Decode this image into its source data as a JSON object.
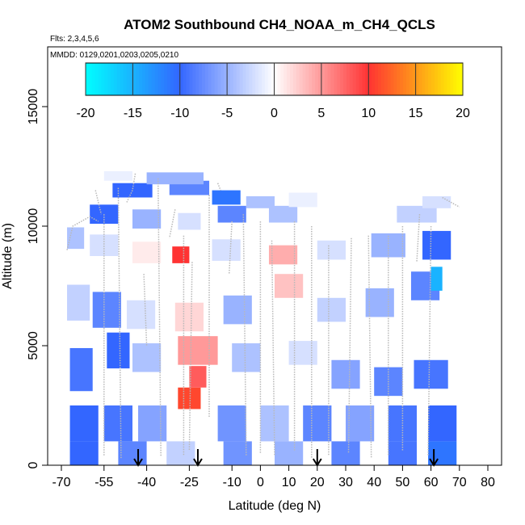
{
  "chart_data": {
    "type": "heatmap",
    "title": "ATOM2 Southbound CH4_NOAA_m_CH4_QCLS",
    "flights_text": "Flts: 2,3,4,5,6",
    "dates_text": "MMDD: 0129,0201,0203,0205,0210",
    "xlabel": "Latitude (deg N)",
    "ylabel": "Altitude (m)",
    "xlim": [
      -70,
      80
    ],
    "ylim": [
      0,
      17500
    ],
    "x_ticks": [
      -70,
      -55,
      -40,
      -25,
      -10,
      0,
      10,
      20,
      30,
      40,
      50,
      60,
      70,
      80
    ],
    "x_tick_labels": [
      "-70",
      "-55",
      "-40",
      "-25",
      "-10",
      "0",
      "10",
      "20",
      "30",
      "40",
      "50",
      "60",
      "70",
      "80"
    ],
    "y_ticks": [
      0,
      5000,
      10000,
      15000
    ],
    "y_tick_labels": [
      "0",
      "5000",
      "10000",
      "15000"
    ],
    "colorbar": {
      "min": -20,
      "max": 20,
      "ticks": [
        -20,
        -15,
        -10,
        -5,
        0,
        5,
        10,
        15,
        20
      ],
      "tick_labels": [
        "-20",
        "-15",
        "-10",
        "-5",
        "0",
        "5",
        "10",
        "15",
        "20"
      ],
      "colors": [
        "#00ffff",
        "#3366ff",
        "#ffffff",
        "#ff3333",
        "#ffff00"
      ]
    },
    "arrows_latitude": [
      -43,
      -22,
      20,
      61
    ],
    "cells": [
      {
        "lat": -62,
        "w": 10,
        "alt": 1750,
        "h": 1500,
        "v": -10
      },
      {
        "lat": -50,
        "w": 10,
        "alt": 1750,
        "h": 1500,
        "v": -9
      },
      {
        "lat": -38,
        "w": 10,
        "alt": 1750,
        "h": 1500,
        "v": -6
      },
      {
        "lat": -25,
        "w": 8,
        "alt": 2800,
        "h": 900,
        "v": 11
      },
      {
        "lat": -22,
        "w": 6,
        "alt": 3700,
        "h": 900,
        "v": 8
      },
      {
        "lat": -10,
        "w": 10,
        "alt": 1750,
        "h": 1500,
        "v": -7
      },
      {
        "lat": 5,
        "w": 10,
        "alt": 1750,
        "h": 1500,
        "v": -4
      },
      {
        "lat": 20,
        "w": 10,
        "alt": 1750,
        "h": 1500,
        "v": -8
      },
      {
        "lat": 35,
        "w": 10,
        "alt": 1750,
        "h": 1500,
        "v": -6
      },
      {
        "lat": 50,
        "w": 10,
        "alt": 1750,
        "h": 1500,
        "v": -9
      },
      {
        "lat": 64,
        "w": 10,
        "alt": 1750,
        "h": 1500,
        "v": -10
      },
      {
        "lat": -62,
        "w": 10,
        "alt": 500,
        "h": 1000,
        "v": -10
      },
      {
        "lat": -45,
        "w": 10,
        "alt": 500,
        "h": 1000,
        "v": -8
      },
      {
        "lat": -28,
        "w": 10,
        "alt": 500,
        "h": 1000,
        "v": -3
      },
      {
        "lat": -8,
        "w": 10,
        "alt": 500,
        "h": 1000,
        "v": -7
      },
      {
        "lat": 10,
        "w": 10,
        "alt": 500,
        "h": 1000,
        "v": -5
      },
      {
        "lat": 30,
        "w": 10,
        "alt": 500,
        "h": 1000,
        "v": -8
      },
      {
        "lat": 50,
        "w": 10,
        "alt": 500,
        "h": 1000,
        "v": -9
      },
      {
        "lat": 64,
        "w": 10,
        "alt": 500,
        "h": 1000,
        "v": -11
      },
      {
        "lat": -63,
        "w": 8,
        "alt": 4000,
        "h": 1800,
        "v": -9
      },
      {
        "lat": -50,
        "w": 8,
        "alt": 4800,
        "h": 1500,
        "v": -10
      },
      {
        "lat": -40,
        "w": 10,
        "alt": 4500,
        "h": 1200,
        "v": -4
      },
      {
        "lat": -22,
        "w": 14,
        "alt": 4800,
        "h": 1200,
        "v": 5
      },
      {
        "lat": -5,
        "w": 10,
        "alt": 4500,
        "h": 1200,
        "v": -4
      },
      {
        "lat": 15,
        "w": 10,
        "alt": 4700,
        "h": 1000,
        "v": -2
      },
      {
        "lat": 30,
        "w": 10,
        "alt": 3800,
        "h": 1200,
        "v": -6
      },
      {
        "lat": 45,
        "w": 10,
        "alt": 3500,
        "h": 1200,
        "v": -8
      },
      {
        "lat": 60,
        "w": 12,
        "alt": 3800,
        "h": 1200,
        "v": -9
      },
      {
        "lat": -64,
        "w": 8,
        "alt": 6800,
        "h": 1500,
        "v": -3
      },
      {
        "lat": -54,
        "w": 10,
        "alt": 6500,
        "h": 1500,
        "v": -8
      },
      {
        "lat": -42,
        "w": 10,
        "alt": 6300,
        "h": 1200,
        "v": -2
      },
      {
        "lat": -25,
        "w": 10,
        "alt": 6200,
        "h": 1200,
        "v": 2
      },
      {
        "lat": -8,
        "w": 10,
        "alt": 6500,
        "h": 1200,
        "v": -5
      },
      {
        "lat": 10,
        "w": 10,
        "alt": 7500,
        "h": 1000,
        "v": 3
      },
      {
        "lat": 25,
        "w": 10,
        "alt": 6500,
        "h": 1000,
        "v": -3
      },
      {
        "lat": 42,
        "w": 10,
        "alt": 6800,
        "h": 1200,
        "v": -5
      },
      {
        "lat": 58,
        "w": 10,
        "alt": 7500,
        "h": 1200,
        "v": -8
      },
      {
        "lat": 62,
        "w": 4,
        "alt": 7800,
        "h": 1000,
        "v": -15
      },
      {
        "lat": -65,
        "w": 6,
        "alt": 9500,
        "h": 900,
        "v": -4
      },
      {
        "lat": -55,
        "w": 10,
        "alt": 9200,
        "h": 900,
        "v": -2
      },
      {
        "lat": -40,
        "w": 10,
        "alt": 8900,
        "h": 900,
        "v": 1
      },
      {
        "lat": -28,
        "w": 6,
        "alt": 8800,
        "h": 700,
        "v": 10
      },
      {
        "lat": -12,
        "w": 10,
        "alt": 9000,
        "h": 900,
        "v": -2
      },
      {
        "lat": 8,
        "w": 10,
        "alt": 8800,
        "h": 800,
        "v": 4
      },
      {
        "lat": 25,
        "w": 10,
        "alt": 9000,
        "h": 800,
        "v": -2
      },
      {
        "lat": 45,
        "w": 12,
        "alt": 9200,
        "h": 1000,
        "v": -5
      },
      {
        "lat": 62,
        "w": 10,
        "alt": 9200,
        "h": 1200,
        "v": -10
      },
      {
        "lat": -55,
        "w": 10,
        "alt": 10500,
        "h": 800,
        "v": -10
      },
      {
        "lat": -40,
        "w": 10,
        "alt": 10300,
        "h": 800,
        "v": -5
      },
      {
        "lat": -25,
        "w": 8,
        "alt": 10200,
        "h": 700,
        "v": -2
      },
      {
        "lat": -10,
        "w": 10,
        "alt": 10500,
        "h": 700,
        "v": -8
      },
      {
        "lat": 8,
        "w": 10,
        "alt": 10500,
        "h": 700,
        "v": -4
      },
      {
        "lat": 55,
        "w": 14,
        "alt": 10500,
        "h": 700,
        "v": -3
      },
      {
        "lat": -45,
        "w": 14,
        "alt": 11500,
        "h": 600,
        "v": -10
      },
      {
        "lat": -25,
        "w": 14,
        "alt": 11600,
        "h": 600,
        "v": -8
      },
      {
        "lat": -12,
        "w": 10,
        "alt": 11200,
        "h": 600,
        "v": -11
      },
      {
        "lat": 0,
        "w": 10,
        "alt": 11000,
        "h": 500,
        "v": -4
      },
      {
        "lat": 15,
        "w": 10,
        "alt": 11100,
        "h": 600,
        "v": -1
      },
      {
        "lat": 62,
        "w": 10,
        "alt": 11000,
        "h": 500,
        "v": -2
      },
      {
        "lat": -30,
        "w": 20,
        "alt": 12000,
        "h": 500,
        "v": -5
      },
      {
        "lat": -50,
        "w": 10,
        "alt": 12100,
        "h": 400,
        "v": -1
      }
    ],
    "flight_tracks": [
      [
        [
          -68,
          9000
        ],
        [
          -66,
          10000
        ],
        [
          -60,
          10400
        ],
        [
          -57,
          10200
        ]
      ],
      [
        [
          -58,
          11500
        ],
        [
          -56,
          10500
        ]
      ],
      [
        [
          -55,
          10500
        ],
        [
          -55,
          400
        ]
      ],
      [
        [
          -50,
          11600
        ],
        [
          -49,
          300
        ]
      ],
      [
        [
          -44,
          12200
        ],
        [
          -45,
          11500
        ],
        [
          -47,
          11000
        ]
      ],
      [
        [
          -41,
          8000
        ],
        [
          -40,
          5000
        ]
      ],
      [
        [
          -36,
          12000
        ],
        [
          -35,
          400
        ]
      ],
      [
        [
          -30,
          10700
        ],
        [
          -32,
          9500
        ]
      ],
      [
        [
          -27,
          9600
        ],
        [
          -27,
          400
        ]
      ],
      [
        [
          -24,
          8500
        ],
        [
          -25,
          600
        ]
      ],
      [
        [
          -18,
          11300
        ],
        [
          -18,
          2000
        ]
      ],
      [
        [
          -15,
          11800
        ],
        [
          -14,
          11500
        ]
      ],
      [
        [
          -10,
          10200
        ],
        [
          -11,
          8000
        ]
      ],
      [
        [
          -6,
          10500
        ],
        [
          -5,
          400
        ]
      ],
      [
        [
          0,
          10200
        ],
        [
          0,
          500
        ]
      ],
      [
        [
          4,
          9400
        ],
        [
          5,
          400
        ]
      ],
      [
        [
          12,
          10200
        ],
        [
          12,
          600
        ]
      ],
      [
        [
          18,
          10000
        ],
        [
          18,
          300
        ]
      ],
      [
        [
          24,
          9200
        ],
        [
          24,
          400
        ]
      ],
      [
        [
          32,
          9500
        ],
        [
          31,
          500
        ]
      ],
      [
        [
          38,
          9600
        ],
        [
          39,
          300
        ]
      ],
      [
        [
          45,
          9600
        ],
        [
          45,
          400
        ]
      ],
      [
        [
          50,
          10000
        ],
        [
          50,
          600
        ]
      ],
      [
        [
          56,
          10500
        ],
        [
          55,
          8500
        ]
      ],
      [
        [
          60,
          10000
        ],
        [
          59,
          400
        ]
      ],
      [
        [
          64,
          11200
        ],
        [
          67,
          11000
        ],
        [
          70,
          10800
        ]
      ]
    ]
  }
}
